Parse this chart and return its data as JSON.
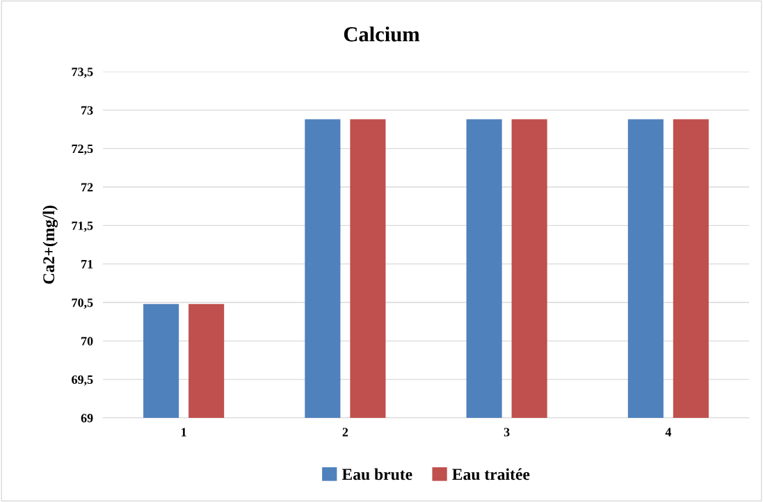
{
  "chart_data": {
    "type": "bar",
    "title": "Calcium",
    "ylabel": "Ca2+(mg/l)",
    "categories": [
      "1",
      "2",
      "3",
      "4"
    ],
    "series": [
      {
        "name": "Eau brute",
        "color": "#4f81bd",
        "values": [
          70.48,
          72.88,
          72.88,
          72.88
        ]
      },
      {
        "name": "Eau traitée",
        "color": "#c0504d",
        "values": [
          70.48,
          72.88,
          72.88,
          72.88
        ]
      }
    ],
    "ylim": [
      69,
      73.5
    ],
    "yticks": [
      {
        "value": 69,
        "label": "69"
      },
      {
        "value": 69.5,
        "label": "69,5"
      },
      {
        "value": 70,
        "label": "70"
      },
      {
        "value": 70.5,
        "label": "70,5"
      },
      {
        "value": 71,
        "label": "71"
      },
      {
        "value": 71.5,
        "label": "71,5"
      },
      {
        "value": 72,
        "label": "72"
      },
      {
        "value": 72.5,
        "label": "72,5"
      },
      {
        "value": 73,
        "label": "73"
      },
      {
        "value": 73.5,
        "label": "73,5"
      }
    ],
    "grid": "y",
    "legend": "bottom"
  }
}
